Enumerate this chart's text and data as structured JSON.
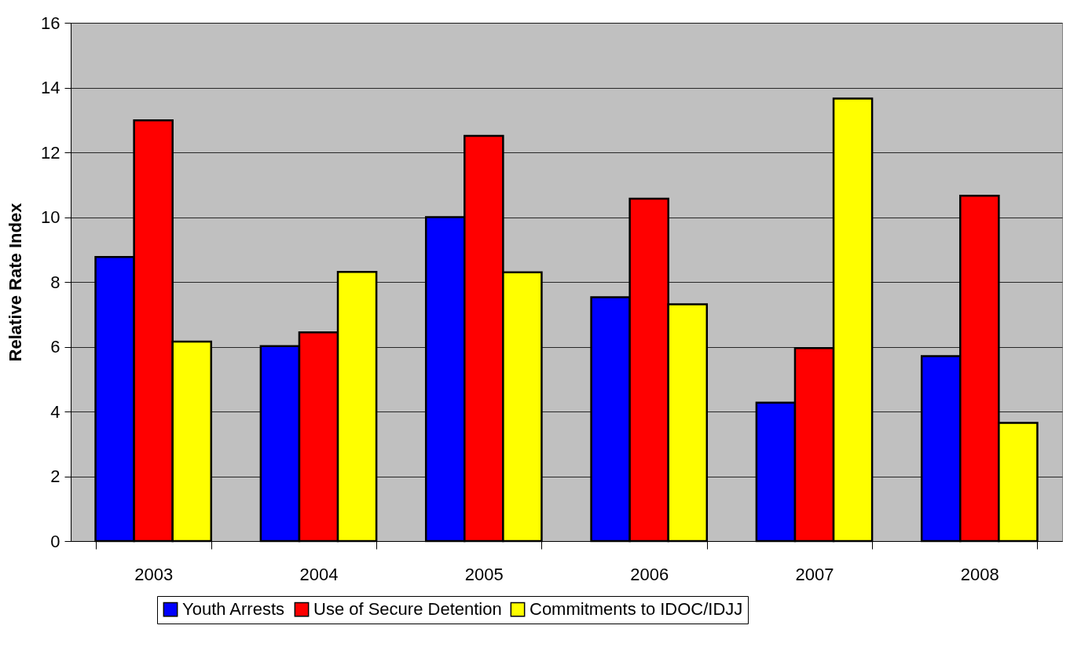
{
  "chart_data": {
    "type": "bar",
    "ylabel": "Relative Rate Index",
    "categories": [
      "2003",
      "2004",
      "2005",
      "2006",
      "2007",
      "2008"
    ],
    "series": [
      {
        "name": "Youth Arrests",
        "color": "#0000ff",
        "values": [
          8.77,
          6.02,
          10.0,
          7.53,
          4.27,
          5.71
        ]
      },
      {
        "name": "Use of Secure Detention",
        "color": "#ff0000",
        "values": [
          12.99,
          6.44,
          12.51,
          10.57,
          5.96,
          10.66
        ]
      },
      {
        "name": "Commitments to IDOC/IDJJ",
        "color": "#ffff00",
        "values": [
          6.16,
          8.31,
          8.3,
          7.31,
          13.66,
          3.65
        ]
      }
    ],
    "ylim": [
      0,
      16
    ],
    "yticks": [
      0,
      2,
      4,
      6,
      8,
      10,
      12,
      14,
      16
    ],
    "grid": "y",
    "legend": "bottom"
  }
}
